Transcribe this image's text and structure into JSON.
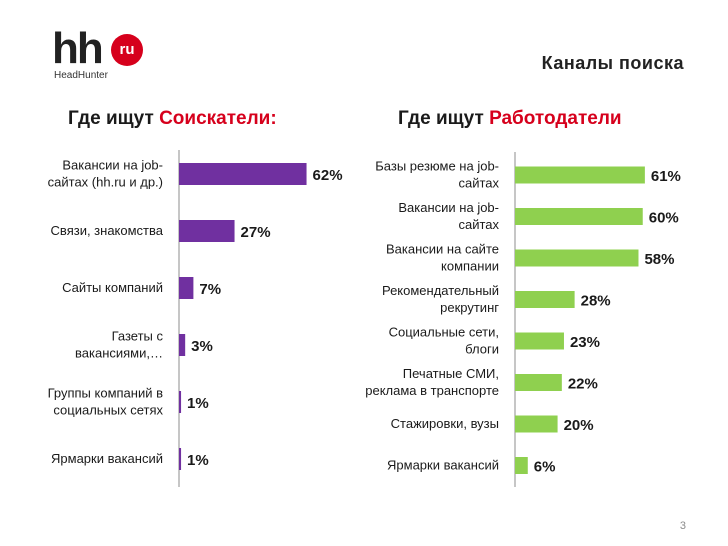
{
  "header": {
    "logo_main": "hh",
    "logo_badge": "ru",
    "logo_sub": "HeadHunter",
    "title": "Каналы поиска"
  },
  "colors": {
    "seekers": "#7030a0",
    "employers": "#8fd04f",
    "accent": "#d6001c"
  },
  "page_number": "3",
  "chart_data": [
    {
      "type": "bar",
      "orientation": "horizontal",
      "title_prefix": "Где ищут ",
      "title_highlight": "Соискатели:",
      "categories": [
        [
          "Вакансии на job-",
          "сайтах (hh.ru и др.)"
        ],
        [
          "Связи, знакомства"
        ],
        [
          "Сайты компаний"
        ],
        [
          "Газеты с",
          "вакансиями,…"
        ],
        [
          "Группы компаний в",
          "социальных сетях"
        ],
        [
          "Ярмарки вакансий"
        ]
      ],
      "values": [
        62,
        27,
        7,
        3,
        1,
        1
      ],
      "labels": [
        "62%",
        "27%",
        "7%",
        "3%",
        "1%",
        "1%"
      ],
      "unit": "%",
      "xlim": [
        0,
        70
      ]
    },
    {
      "type": "bar",
      "orientation": "horizontal",
      "title_prefix": "Где ищут ",
      "title_highlight": "Работодатели",
      "categories": [
        [
          "Базы резюме на job-",
          "сайтах"
        ],
        [
          "Вакансии на job-",
          "сайтах"
        ],
        [
          "Вакансии на сайте",
          "компании"
        ],
        [
          "Рекомендательный",
          "рекрутинг"
        ],
        [
          "Социальные сети,",
          "блоги"
        ],
        [
          "Печатные СМИ,",
          "реклама в транспорте"
        ],
        [
          "Стажировки, вузы"
        ],
        [
          "Ярмарки вакансий"
        ]
      ],
      "values": [
        61,
        60,
        58,
        28,
        23,
        22,
        20,
        6
      ],
      "labels": [
        "61%",
        "60%",
        "58%",
        "28%",
        "23%",
        "22%",
        "20%",
        "6%"
      ],
      "unit": "%",
      "xlim": [
        0,
        62
      ]
    }
  ]
}
